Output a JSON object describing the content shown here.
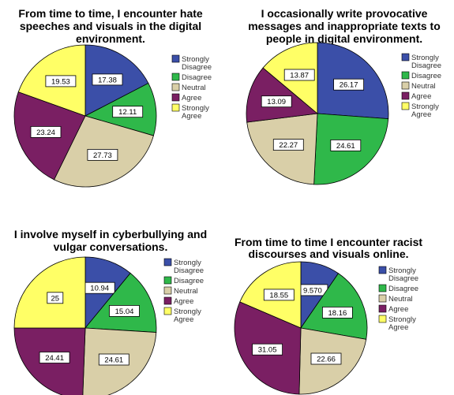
{
  "legend_colors": {
    "Strongly Disagree": "#3b4fa8",
    "Disagree": "#2fb84a",
    "Neutral": "#d9cfa8",
    "Agree": "#7a1f63",
    "Strongly Agree": "#ffff66"
  },
  "chart_data": [
    {
      "type": "pie",
      "title_lines": [
        "From time to time, I encounter hate",
        "speeches and visuals in the digital",
        "environment."
      ],
      "categories": [
        "Strongly Disagree",
        "Disagree",
        "Neutral",
        "Agree",
        "Strongly Agree"
      ],
      "values": [
        17.38,
        12.11,
        27.73,
        23.24,
        19.53
      ],
      "labels": [
        "17.38",
        "12.11",
        "27.73",
        "23.24",
        "19.53"
      ],
      "legend_lines": [
        [
          "Strongly",
          "Disagree"
        ],
        [
          "Disagree"
        ],
        [
          "Neutral"
        ],
        [
          "Agree"
        ],
        [
          "Strongly",
          "Agree"
        ]
      ]
    },
    {
      "type": "pie",
      "title_lines": [
        "I occasionally write provocative",
        "messages and inappropriate texts to",
        "people in digital environment."
      ],
      "categories": [
        "Strongly Disagree",
        "Disagree",
        "Neutral",
        "Agree",
        "Strongly Agree"
      ],
      "values": [
        26.17,
        24.61,
        22.27,
        13.09,
        13.87
      ],
      "labels": [
        "26.17",
        "24.61",
        "22.27",
        "13.09",
        "13.87"
      ],
      "legend_lines": [
        [
          "Strongly",
          "Disagree"
        ],
        [
          "Disagree"
        ],
        [
          "Neutral"
        ],
        [
          "Agree"
        ],
        [
          "Strongly",
          "Agree"
        ]
      ]
    },
    {
      "type": "pie",
      "title_lines": [
        "I involve myself in cyberbullying and",
        "vulgar conversations."
      ],
      "categories": [
        "Strongly Disagree",
        "Disagree",
        "Neutral",
        "Agree",
        "Strongly Agree"
      ],
      "values": [
        10.94,
        15.04,
        24.61,
        24.41,
        25
      ],
      "labels": [
        "10.94",
        "15.04",
        "24.61",
        "24.41",
        "25"
      ],
      "legend_lines": [
        [
          "Strongly",
          "Disagree"
        ],
        [
          "Disagree"
        ],
        [
          "Neutral"
        ],
        [
          "Agree"
        ],
        [
          "Strongly",
          "Agree"
        ]
      ]
    },
    {
      "type": "pie",
      "title_lines": [
        "From time to time I encounter racist",
        "discourses and visuals online."
      ],
      "categories": [
        "Strongly Disagree",
        "Disagree",
        "Neutral",
        "Agree",
        "Strongly Agree"
      ],
      "values": [
        9.57,
        18.16,
        22.66,
        31.05,
        18.55
      ],
      "labels": [
        "9.570",
        "18.16",
        "22.66",
        "31.05",
        "18.55"
      ],
      "legend_lines": [
        [
          "Strongly",
          "Disagree"
        ],
        [
          "Disagree"
        ],
        [
          "Neutral"
        ],
        [
          "Agree"
        ],
        [
          "Strongly",
          "Agree"
        ]
      ]
    }
  ]
}
